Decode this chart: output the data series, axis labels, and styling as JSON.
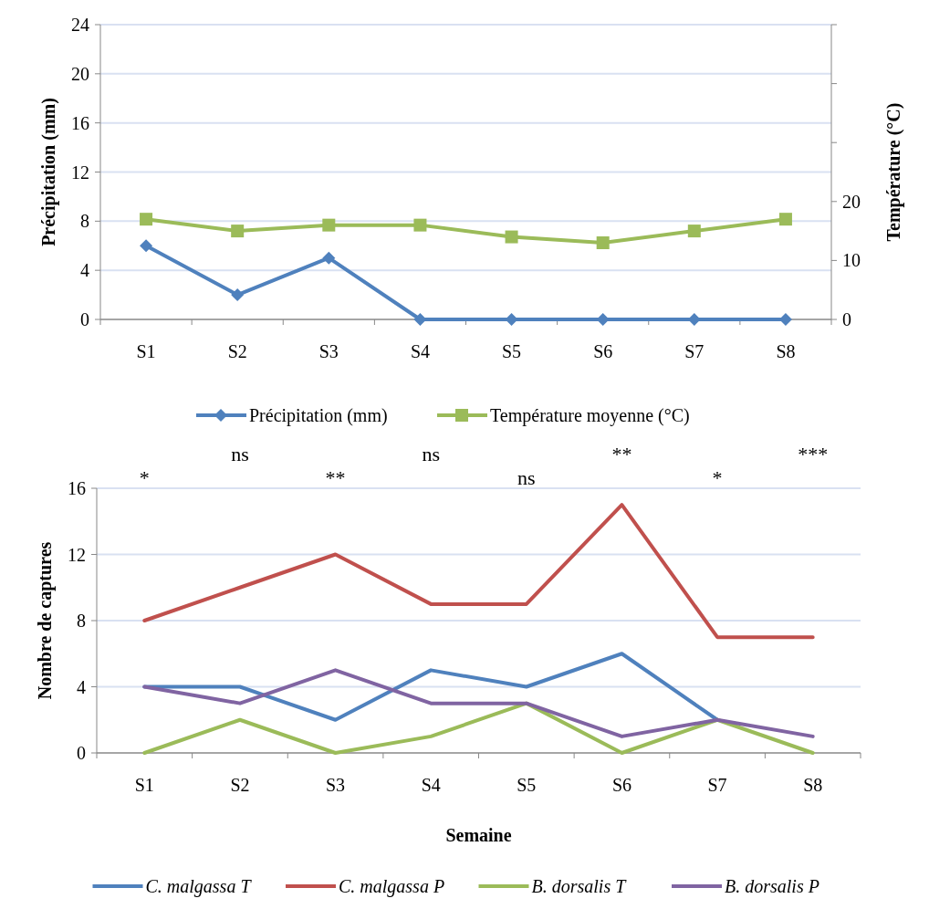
{
  "chart_data": [
    {
      "type": "line",
      "categories": [
        "S1",
        "S2",
        "S3",
        "S4",
        "S5",
        "S6",
        "S7",
        "S8"
      ],
      "ylabel": "Précipitation (mm)",
      "y2label": "Température (°C)",
      "ylim": [
        0,
        24
      ],
      "yticks": [
        0,
        4,
        8,
        12,
        16,
        20,
        24
      ],
      "y2lim": [
        0,
        50
      ],
      "y2ticks": [
        0,
        10,
        20,
        {
          "value": 30,
          "label": null
        },
        {
          "value": 40,
          "label": null
        },
        {
          "value": 50,
          "label": null
        }
      ],
      "grid": "y",
      "legend": "bottom",
      "series": [
        {
          "name": "Précipitation (mm)",
          "color": "#4f81bd",
          "marker": "diamond",
          "values": [
            6,
            2,
            5,
            0,
            0,
            0,
            0,
            0
          ]
        },
        {
          "name": "Température moyenne (°C)",
          "color": "#9bbb59",
          "marker": "square",
          "axis": "y2",
          "values": [
            17,
            15,
            16,
            16,
            14,
            13,
            15,
            17
          ]
        }
      ]
    },
    {
      "type": "line",
      "categories": [
        "S1",
        "S2",
        "S3",
        "S4",
        "S5",
        "S6",
        "S7",
        "S8"
      ],
      "xlabel": "Semaine",
      "ylabel": "Nombre de captures",
      "ylim": [
        0,
        16
      ],
      "yticks": [
        0,
        4,
        8,
        12,
        16
      ],
      "grid": "y",
      "legend": "bottom",
      "marker": "none",
      "series": [
        {
          "name": "C. malgassa T",
          "color": "#4f81bd",
          "values": [
            4,
            4,
            2,
            5,
            4,
            6,
            2,
            null
          ]
        },
        {
          "name": "C. malgassa P",
          "color": "#c0504d",
          "values": [
            8,
            10,
            12,
            9,
            9,
            15,
            7,
            7
          ]
        },
        {
          "name": "B. dorsalis T",
          "color": "#9bbb59",
          "values": [
            0,
            2,
            0,
            1,
            3,
            0,
            2,
            0
          ]
        },
        {
          "name": "B. dorsalis P",
          "color": "#8064a2",
          "values": [
            4,
            3,
            5,
            3,
            3,
            1,
            2,
            1
          ]
        }
      ],
      "annotations": [
        "*",
        "ns",
        "**",
        "ns",
        "ns",
        "**",
        "*",
        "***"
      ]
    }
  ]
}
